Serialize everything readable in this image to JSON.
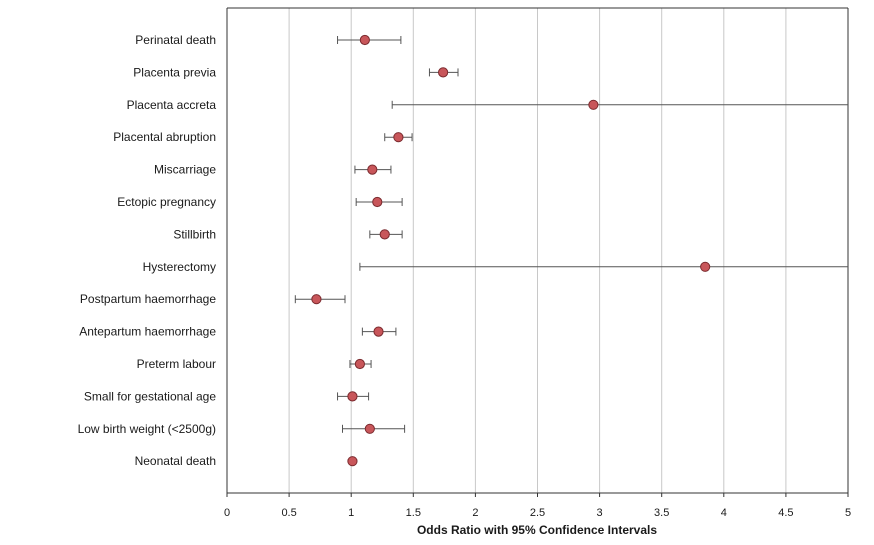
{
  "chart_data": {
    "type": "scatter",
    "subtype": "forest-plot",
    "title": "",
    "xlabel": "Odds Ratio with 95% Confidence Intervals",
    "ylabel": "",
    "xlim": [
      0,
      5
    ],
    "x_ticks": [
      "0",
      "0.5",
      "1",
      "1.5",
      "2",
      "2.5",
      "3",
      "3.5",
      "4",
      "4.5",
      "5"
    ],
    "grid": "vertical",
    "legend": "none",
    "colors": {
      "marker_fill": "#c8565a",
      "marker_stroke": "#7a2a2e",
      "error_bar": "#555555",
      "grid": "#c8c8c8",
      "axis": "#333333"
    },
    "categories": [
      "Perinatal death",
      "Placenta previa",
      "Placenta accreta",
      "Placental abruption",
      "Miscarriage",
      "Ectopic pregnancy",
      "Stillbirth",
      "Hysterectomy",
      "Postpartum haemorrhage",
      "Antepartum haemorrhage",
      "Preterm labour",
      "Small for gestational age",
      "Low birth weight (<2500g)",
      "Neonatal death"
    ],
    "values": [
      1.11,
      1.74,
      2.95,
      1.38,
      1.17,
      1.21,
      1.27,
      3.85,
      0.72,
      1.22,
      1.07,
      1.01,
      1.15,
      1.01
    ],
    "ci_lower": [
      0.89,
      1.63,
      1.33,
      1.27,
      1.03,
      1.04,
      1.15,
      1.07,
      0.55,
      1.09,
      0.99,
      0.89,
      0.93,
      1.0
    ],
    "ci_upper": [
      1.4,
      1.86,
      5.0,
      1.49,
      1.32,
      1.41,
      1.41,
      5.0,
      0.95,
      1.36,
      1.16,
      1.14,
      1.43,
      1.02
    ]
  }
}
